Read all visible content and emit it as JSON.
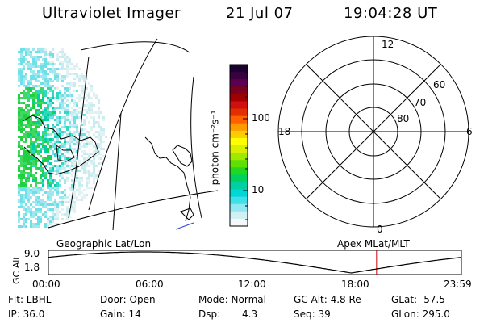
{
  "header": {
    "title": "Ultraviolet Imager",
    "date": "21 Jul 07",
    "time": "19:04:28 UT"
  },
  "colorbar": {
    "unit_label": "photon cm⁻²s⁻¹",
    "tick_labels": [
      "100",
      "10"
    ],
    "scale": "log",
    "colors": [
      "#1a0033",
      "#3a0040",
      "#5a0050",
      "#7a0020",
      "#a00000",
      "#d01010",
      "#e03000",
      "#ff6000",
      "#ff9a00",
      "#ffcc00",
      "#ffff00",
      "#d8f000",
      "#a0e800",
      "#60e000",
      "#20d820",
      "#00d060",
      "#00d0a0",
      "#00d8d8",
      "#40e0e8",
      "#90e8f0",
      "#d0f0f4",
      "#f4f8fa"
    ]
  },
  "polar_plot": {
    "clock_labels": [
      "12",
      "18",
      "6",
      "0"
    ],
    "lat_labels": [
      "60",
      "70",
      "80"
    ]
  },
  "left_map": {
    "caption": "Geographic Lat/Lon"
  },
  "right_map": {
    "caption": "Apex MLat/MLT"
  },
  "altitude_plot": {
    "ylabel": "GC Alt",
    "y_ticks": [
      "9.0",
      "1.8"
    ],
    "x_ticks": [
      "00:00",
      "06:00",
      "12:00",
      "18:00",
      "23:59"
    ],
    "current_time_hours": 19.07,
    "series_color": "#000000",
    "marker_color": "#cc0000"
  },
  "info": {
    "filter": "Flt: LBHL",
    "door": "Door: Open",
    "mode": "Mode: Normal",
    "gc_alt": "GC Alt: 4.8 Re",
    "glat": "GLat: -57.5",
    "ip": "IP: 36.0",
    "gain": "Gain: 14",
    "dsp_label": "Dsp:",
    "dsp_value": "4.3",
    "seq": "Seq: 39",
    "glon": "GLon: 295.0"
  }
}
